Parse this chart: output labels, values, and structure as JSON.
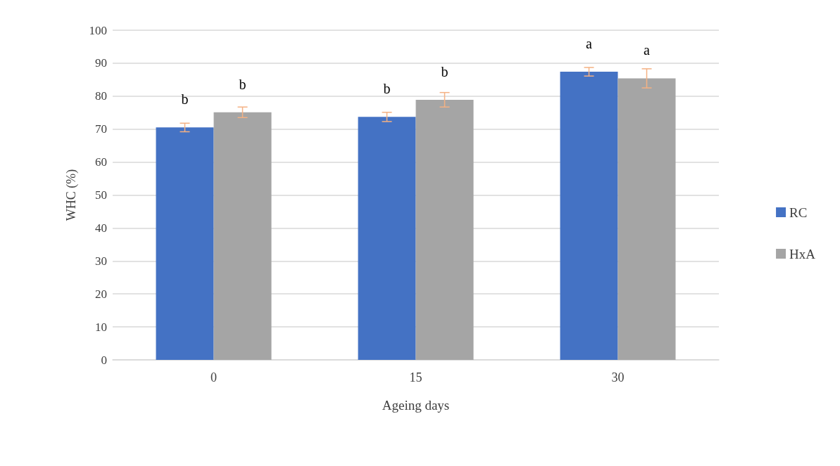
{
  "chart_data": {
    "type": "bar",
    "xlabel": "Ageing days",
    "ylabel": "WHC (%)",
    "categories": [
      "0",
      "15",
      "30"
    ],
    "series": [
      {
        "name": "RC",
        "color": "#4472c4",
        "values": [
          70.5,
          73.7,
          87.4
        ],
        "errors": [
          1.3,
          1.4,
          1.3
        ],
        "value_labels": [
          "b",
          "b",
          "a"
        ]
      },
      {
        "name": "HxA",
        "color": "#a5a5a5",
        "values": [
          75.1,
          78.9,
          85.4
        ],
        "errors": [
          1.6,
          2.2,
          2.9
        ],
        "value_labels": [
          "b",
          "b",
          "a"
        ]
      }
    ],
    "ylim": [
      0,
      100
    ],
    "yticks": [
      0,
      10,
      20,
      30,
      40,
      50,
      60,
      70,
      80,
      90,
      100
    ],
    "grid": "y",
    "legend": "right"
  }
}
